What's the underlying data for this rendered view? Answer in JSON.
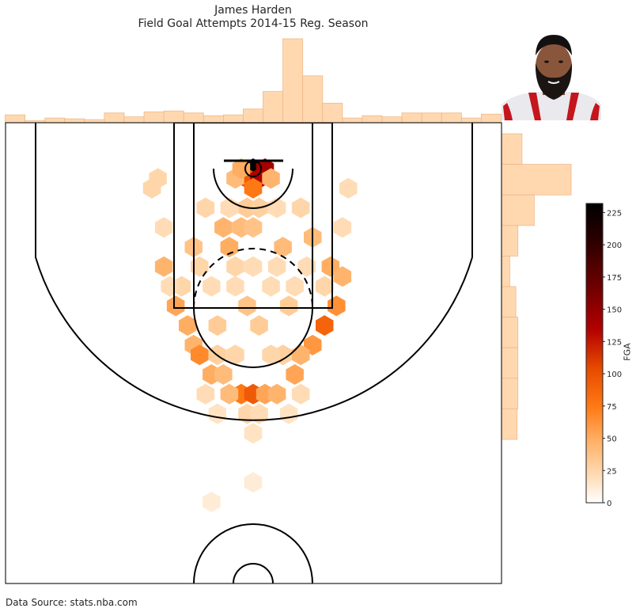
{
  "chart_data": {
    "type": "heatmap",
    "title": "James Harden",
    "subtitle": "Field Goal Attempts 2014-15 Reg. Season",
    "source": "Data Source: stats.nba.com",
    "colorbar": {
      "label": "FGA",
      "ticks": [
        0,
        25,
        50,
        75,
        100,
        125,
        150,
        175,
        200,
        225
      ],
      "range": [
        0,
        232
      ],
      "colormap": [
        "#ffffff",
        "#ffe0bd",
        "#ffb36b",
        "#ff7a14",
        "#e64a00",
        "#b30000",
        "#700000",
        "#2a0000",
        "#000000"
      ]
    },
    "hexbins": [
      {
        "x": 0,
        "y": 0,
        "count": 232
      },
      {
        "x": 12,
        "y": 0,
        "count": 95
      },
      {
        "x": -6,
        "y": 10,
        "count": 45
      },
      {
        "x": 6,
        "y": 10,
        "count": 88
      },
      {
        "x": 0,
        "y": 20,
        "count": 30
      },
      {
        "x": 18,
        "y": 10,
        "count": 12
      },
      {
        "x": -18,
        "y": 10,
        "count": 10
      },
      {
        "x": -12,
        "y": 0,
        "count": 14
      },
      {
        "x": -30,
        "y": 60,
        "count": 12
      },
      {
        "x": -12,
        "y": 60,
        "count": 10
      },
      {
        "x": 0,
        "y": 60,
        "count": 8
      },
      {
        "x": -24,
        "y": 80,
        "count": 14
      },
      {
        "x": 30,
        "y": 80,
        "count": 10
      },
      {
        "x": -60,
        "y": 80,
        "count": 8
      },
      {
        "x": 60,
        "y": 70,
        "count": 10
      },
      {
        "x": 78,
        "y": 100,
        "count": 14
      },
      {
        "x": -90,
        "y": 100,
        "count": 12
      },
      {
        "x": 90,
        "y": 110,
        "count": 12
      },
      {
        "x": -78,
        "y": 140,
        "count": 16
      },
      {
        "x": 84,
        "y": 140,
        "count": 22
      },
      {
        "x": 72,
        "y": 160,
        "count": 40
      },
      {
        "x": -66,
        "y": 160,
        "count": 14
      },
      {
        "x": -60,
        "y": 180,
        "count": 12
      },
      {
        "x": 60,
        "y": 180,
        "count": 20
      },
      {
        "x": -54,
        "y": 190,
        "count": 24
      },
      {
        "x": 48,
        "y": 190,
        "count": 12
      },
      {
        "x": -42,
        "y": 210,
        "count": 14
      },
      {
        "x": 42,
        "y": 210,
        "count": 16
      },
      {
        "x": -30,
        "y": 210,
        "count": 10
      },
      {
        "x": -12,
        "y": 230,
        "count": 30
      },
      {
        "x": 0,
        "y": 230,
        "count": 45
      },
      {
        "x": 12,
        "y": 230,
        "count": 16
      },
      {
        "x": -24,
        "y": 230,
        "count": 10
      },
      {
        "x": 24,
        "y": 230,
        "count": 12
      },
      {
        "x": -6,
        "y": 140,
        "count": 8
      },
      {
        "x": 6,
        "y": 160,
        "count": 6
      },
      {
        "x": -36,
        "y": 160,
        "count": 6
      },
      {
        "x": 36,
        "y": 140,
        "count": 6
      },
      {
        "x": -48,
        "y": 40,
        "count": 4
      },
      {
        "x": 48,
        "y": 40,
        "count": 4
      },
      {
        "x": -102,
        "y": 20,
        "count": 4
      },
      {
        "x": 96,
        "y": 20,
        "count": 3
      },
      {
        "x": -96,
        "y": 10,
        "count": 4
      },
      {
        "x": -90,
        "y": 60,
        "count": 3
      },
      {
        "x": 90,
        "y": 60,
        "count": 3
      },
      {
        "x": -72,
        "y": 120,
        "count": 4
      },
      {
        "x": 72,
        "y": 120,
        "count": 4
      },
      {
        "x": -84,
        "y": 120,
        "count": 3
      },
      {
        "x": -42,
        "y": 120,
        "count": 3
      },
      {
        "x": 42,
        "y": 120,
        "count": 3
      },
      {
        "x": -18,
        "y": 120,
        "count": 3
      },
      {
        "x": 18,
        "y": 120,
        "count": 3
      },
      {
        "x": -36,
        "y": 190,
        "count": 5
      },
      {
        "x": 30,
        "y": 190,
        "count": 5
      },
      {
        "x": -18,
        "y": 190,
        "count": 4
      },
      {
        "x": 18,
        "y": 190,
        "count": 4
      },
      {
        "x": -48,
        "y": 230,
        "count": 3
      },
      {
        "x": 48,
        "y": 230,
        "count": 3
      },
      {
        "x": -6,
        "y": 250,
        "count": 4
      },
      {
        "x": 6,
        "y": 250,
        "count": 3
      },
      {
        "x": -36,
        "y": 250,
        "count": 2
      },
      {
        "x": 36,
        "y": 250,
        "count": 2
      },
      {
        "x": 0,
        "y": 270,
        "count": 2
      },
      {
        "x": 0,
        "y": 320,
        "count": 1
      },
      {
        "x": -42,
        "y": 340,
        "count": 1
      },
      {
        "x": -6,
        "y": 40,
        "count": 6
      },
      {
        "x": 6,
        "y": 40,
        "count": 5
      },
      {
        "x": 24,
        "y": 40,
        "count": 3
      },
      {
        "x": -24,
        "y": 40,
        "count": 3
      },
      {
        "x": -18,
        "y": 100,
        "count": 4
      },
      {
        "x": 0,
        "y": 100,
        "count": 3
      },
      {
        "x": 24,
        "y": 100,
        "count": 3
      },
      {
        "x": -54,
        "y": 100,
        "count": 4
      },
      {
        "x": 54,
        "y": 100,
        "count": 3
      }
    ],
    "x_marginal": {
      "bin_edges_x": [
        -250,
        -240,
        -230,
        -220,
        -210,
        -200,
        -190,
        -180,
        -170,
        -160,
        -150,
        -140,
        -130,
        -120,
        -110,
        -100,
        -90,
        -80,
        -70,
        -60,
        -50,
        -40,
        -30,
        -20,
        -10,
        0,
        10,
        20,
        30,
        40,
        50,
        60,
        70,
        80,
        90,
        100,
        110,
        120,
        130,
        140,
        150,
        160,
        170,
        180,
        190,
        200,
        210,
        220,
        230,
        240,
        250
      ],
      "counts": [
        20,
        20,
        5,
        5,
        12,
        12,
        10,
        10,
        8,
        8,
        25,
        25,
        15,
        15,
        28,
        28,
        30,
        30,
        25,
        25,
        18,
        18,
        20,
        20,
        35,
        35,
        80,
        80,
        215,
        215,
        120,
        120,
        50,
        50,
        12,
        12,
        18,
        18,
        15,
        15,
        25,
        25,
        25,
        25,
        25,
        25,
        12,
        12,
        22,
        22
      ]
    },
    "y_marginal": {
      "counts": [
        50,
        170,
        80,
        40,
        20,
        35,
        40,
        40,
        40,
        38,
        38,
        38,
        35,
        35,
        38,
        38,
        35
      ]
    }
  }
}
